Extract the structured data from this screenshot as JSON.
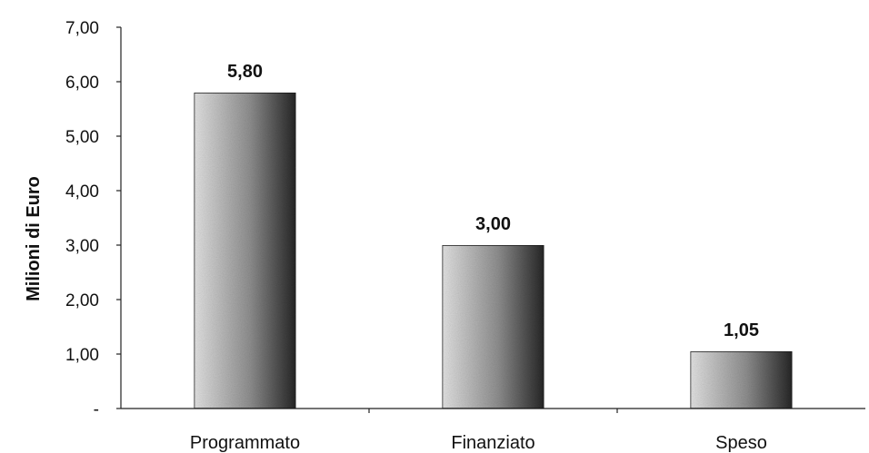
{
  "chart_data": {
    "type": "bar",
    "title": "",
    "xlabel": "",
    "ylabel": "Milioni di Euro",
    "categories": [
      "Programmato",
      "Finanziato",
      "Speso"
    ],
    "values": [
      5.8,
      3.0,
      1.05
    ],
    "data_labels": [
      "5,80",
      "3,00",
      "1,05"
    ],
    "ylim": [
      0,
      7
    ],
    "yticks": [
      0,
      1,
      2,
      3,
      4,
      5,
      6,
      7
    ],
    "ytick_labels": [
      "-",
      "1,00",
      "2,00",
      "3,00",
      "4,00",
      "5,00",
      "6,00",
      "7,00"
    ],
    "grid": false,
    "legend": "none",
    "colors": {
      "bar_light": "#e2e2e2",
      "bar_mid": "#8e8e8e",
      "bar_dark": "#262626",
      "axis": "#222222"
    }
  }
}
